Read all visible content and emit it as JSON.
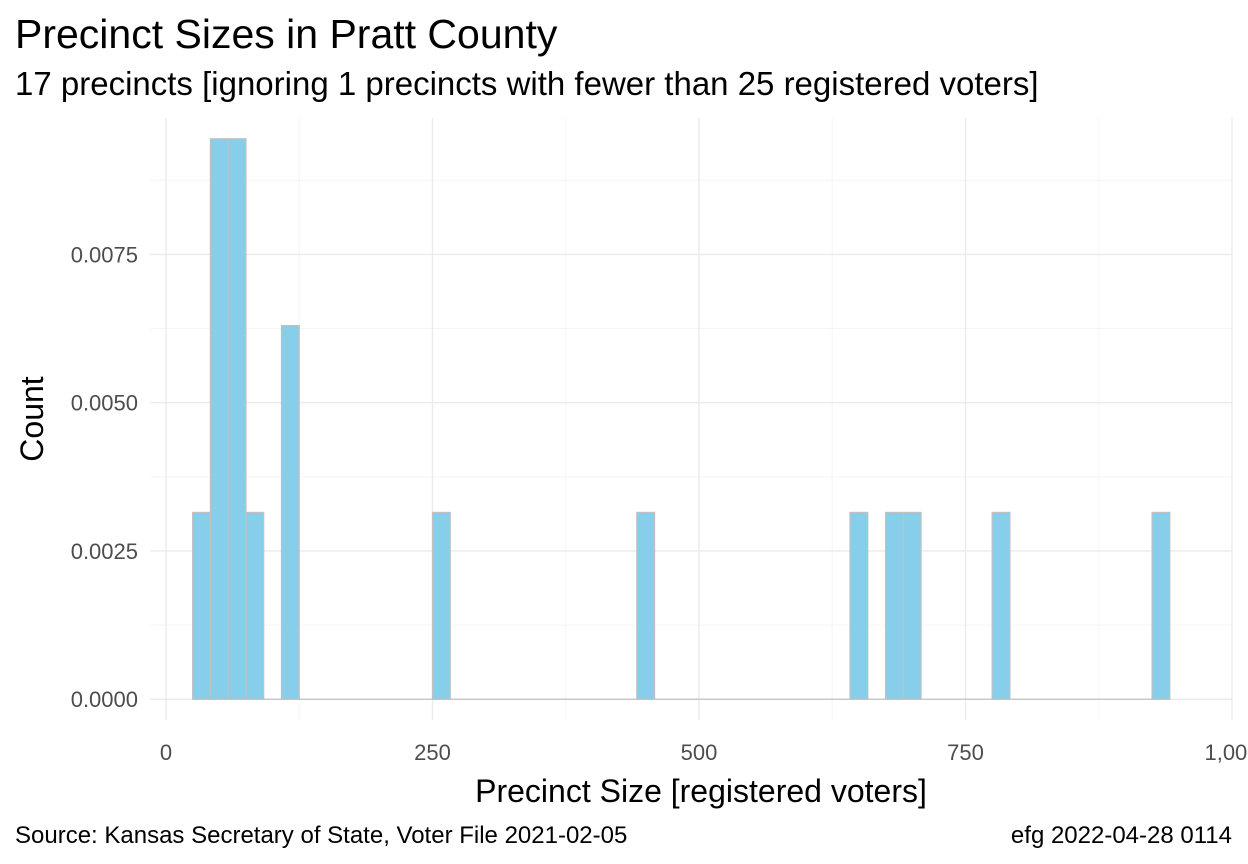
{
  "title": "Precinct Sizes in Pratt County",
  "subtitle": "17 precincts [ignoring 1 precincts with fewer than 25 registered voters]",
  "caption_left": "Source:  Kansas Secretary of State, Voter File  2021-02-05",
  "caption_right": "efg 2022-04-28 0114",
  "colors": {
    "bar_fill": "#87CEEB",
    "bar_stroke": "#C0C0C0",
    "grid_major": "#EBEBEB",
    "grid_minor": "#F5F5F5",
    "baseline": "#C8C8C8"
  },
  "chart_data": {
    "type": "bar",
    "xlabel": "Precinct Size [registered voters]",
    "ylabel": "Count",
    "xlim": [
      -15,
      1000
    ],
    "ylim": [
      -0.00035,
      0.0098
    ],
    "x_ticks": [
      0,
      250,
      500,
      750,
      1000
    ],
    "x_tick_labels": [
      "0",
      "250",
      "500",
      "750",
      "1,000"
    ],
    "y_ticks": [
      0,
      0.0025,
      0.005,
      0.0075
    ],
    "y_tick_labels": [
      "0.0000",
      "0.0025",
      "0.0050",
      "0.0075"
    ],
    "grid": true,
    "bin_width": 16.67,
    "bins": [
      {
        "x0": 25,
        "x1": 41.67,
        "value": 0.00315
      },
      {
        "x0": 41.67,
        "x1": 58.33,
        "value": 0.00945
      },
      {
        "x0": 58.33,
        "x1": 75,
        "value": 0.00945
      },
      {
        "x0": 75,
        "x1": 91.67,
        "value": 0.00315
      },
      {
        "x0": 91.67,
        "x1": 108.33,
        "value": 0
      },
      {
        "x0": 108.33,
        "x1": 125,
        "value": 0.0063
      },
      {
        "x0": 250,
        "x1": 266.67,
        "value": 0.00315
      },
      {
        "x0": 441.67,
        "x1": 458.33,
        "value": 0.00315
      },
      {
        "x0": 641.67,
        "x1": 658.33,
        "value": 0.00315
      },
      {
        "x0": 675,
        "x1": 691.67,
        "value": 0.00315
      },
      {
        "x0": 691.67,
        "x1": 708.33,
        "value": 0.00315
      },
      {
        "x0": 775,
        "x1": 791.67,
        "value": 0.00315
      },
      {
        "x0": 925,
        "x1": 941.67,
        "value": 0.00315
      }
    ]
  }
}
